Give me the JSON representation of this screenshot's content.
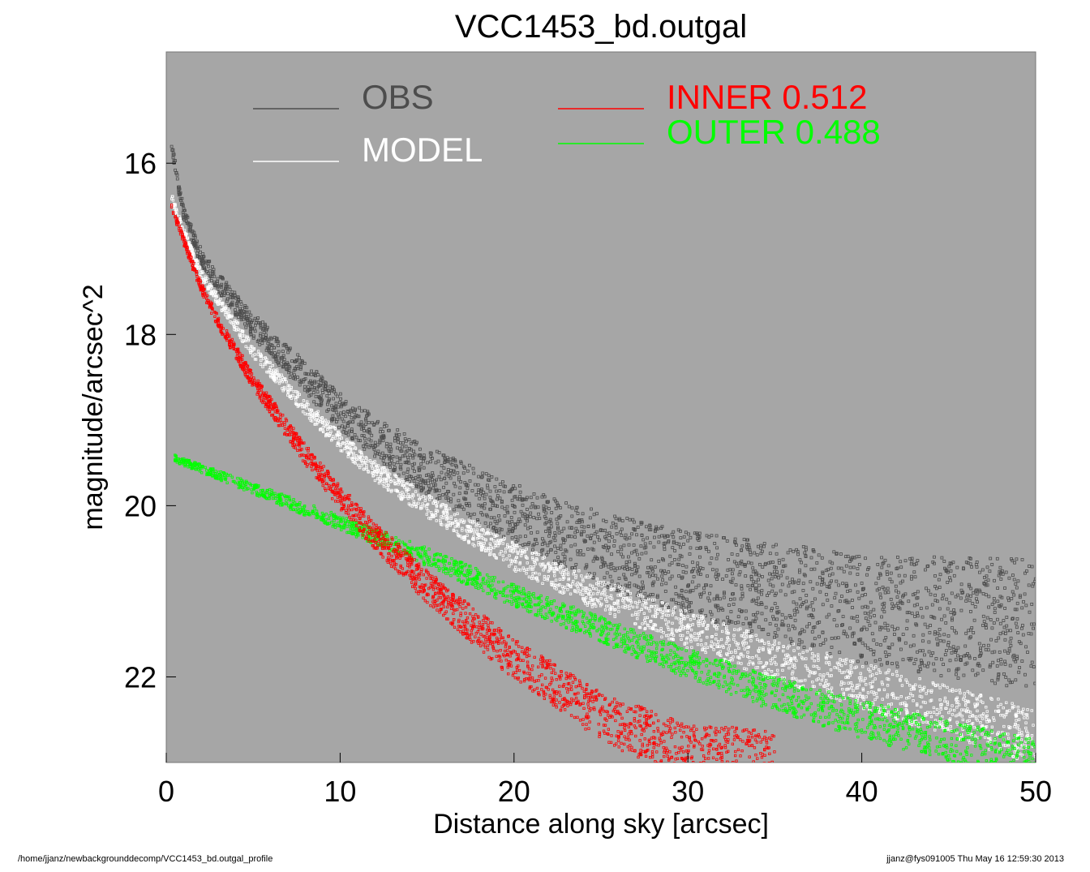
{
  "chart_data": {
    "type": "scatter",
    "title": "VCC1453_bd.outgal",
    "xlabel": "Distance along sky [arcsec]",
    "ylabel": "magnitude/arcsec^2",
    "xlim": [
      0,
      50
    ],
    "ylim": [
      23.0,
      14.7
    ],
    "y_inverted": true,
    "xticks": [
      "0",
      "10",
      "20",
      "30",
      "40",
      "50"
    ],
    "yticks": [
      "16",
      "18",
      "20",
      "22"
    ],
    "background_color": "#a6a6a6",
    "grid": false,
    "legend": [
      {
        "name": "OBS",
        "color": "#4d4d4d"
      },
      {
        "name": "MODEL",
        "color": "#ffffff"
      },
      {
        "name": "INNER",
        "value": "0.512",
        "color": "#ff0000"
      },
      {
        "name": "OUTER",
        "value": "0.488",
        "color": "#00ff00"
      }
    ],
    "series": [
      {
        "name": "OBS",
        "color": "#4d4d4d",
        "x": [
          0.3,
          1,
          2,
          3,
          5,
          8,
          10,
          12,
          15,
          20,
          25,
          30,
          35,
          40,
          45,
          50
        ],
        "y": [
          15.8,
          16.6,
          17.1,
          17.4,
          17.9,
          18.5,
          18.9,
          19.2,
          19.6,
          20.1,
          20.5,
          20.8,
          21.0,
          21.2,
          21.3,
          21.4
        ]
      },
      {
        "name": "MODEL",
        "color": "#ffffff",
        "x": [
          0.3,
          1,
          2,
          3,
          5,
          8,
          10,
          12,
          15,
          20,
          25,
          30,
          35,
          40,
          45,
          50
        ],
        "y": [
          16.4,
          16.8,
          17.3,
          17.6,
          18.2,
          18.85,
          19.25,
          19.6,
          20.0,
          20.6,
          21.05,
          21.45,
          21.8,
          22.1,
          22.4,
          22.7
        ]
      },
      {
        "name": "INNER",
        "color": "#ff0000",
        "x": [
          0.3,
          1,
          2,
          3,
          5,
          8,
          10,
          12,
          15,
          20,
          25,
          30,
          35
        ],
        "y": [
          16.5,
          16.9,
          17.45,
          17.85,
          18.55,
          19.4,
          19.9,
          20.35,
          20.95,
          21.8,
          22.45,
          22.9,
          23.0
        ]
      },
      {
        "name": "OUTER",
        "color": "#00ff00",
        "x": [
          0.5,
          5,
          10,
          15,
          20,
          25,
          30,
          35,
          40,
          45,
          50
        ],
        "y": [
          19.45,
          19.8,
          20.2,
          20.6,
          21.05,
          21.45,
          21.85,
          22.2,
          22.5,
          22.75,
          23.0
        ]
      }
    ]
  },
  "footer": {
    "left": "/home/jjanz/newbackgrounddecomp/VCC1453_bd.outgal_profile",
    "right": "jjanz@fys091005  Thu May 16 12:59:30 2013"
  }
}
